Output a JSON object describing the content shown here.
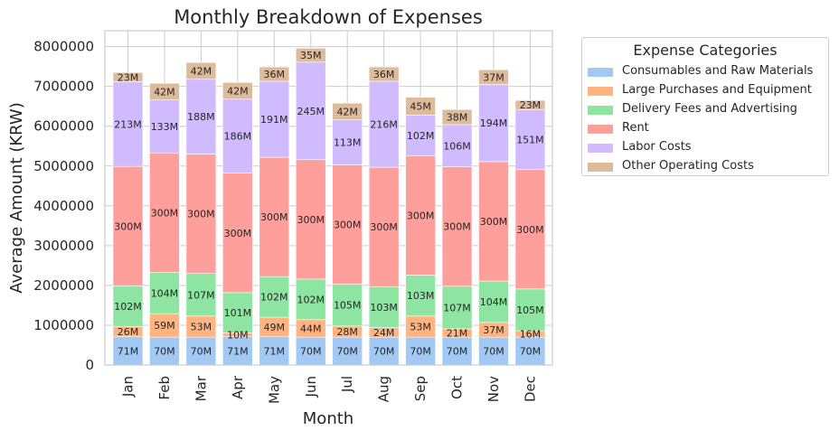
{
  "chart_data": {
    "type": "bar",
    "stacked": true,
    "title": "Monthly Breakdown of Expenses",
    "xlabel": "Month",
    "ylabel": "Average Amount (KRW)",
    "ylim": [
      0,
      8400000
    ],
    "yticks": [
      0,
      1000000,
      2000000,
      3000000,
      4000000,
      5000000,
      6000000,
      7000000,
      8000000
    ],
    "ytick_labels": [
      "0",
      "1000000",
      "2000000",
      "3000000",
      "4000000",
      "5000000",
      "6000000",
      "7000000",
      "8000000"
    ],
    "grid": true,
    "categories": [
      "Jan",
      "Feb",
      "Mar",
      "Apr",
      "May",
      "Jun",
      "Jul",
      "Aug",
      "Sep",
      "Oct",
      "Nov",
      "Dec"
    ],
    "legend": {
      "title": "Expense Categories",
      "placement": "outside-upper-right"
    },
    "series": [
      {
        "name": "Consumables and Raw Materials",
        "color": "#a1c9f4",
        "values": [
          710000,
          700000,
          700000,
          710000,
          710000,
          700000,
          700000,
          700000,
          700000,
          700000,
          700000,
          700000
        ],
        "labels": [
          "71M",
          "70M",
          "70M",
          "71M",
          "71M",
          "70M",
          "70M",
          "70M",
          "70M",
          "70M",
          "70M",
          "70M"
        ]
      },
      {
        "name": "Large Purchases and Equipment",
        "color": "#ffb482",
        "values": [
          260000,
          590000,
          530000,
          100000,
          490000,
          440000,
          280000,
          240000,
          530000,
          210000,
          370000,
          160000
        ],
        "labels": [
          "26M",
          "59M",
          "53M",
          "10M",
          "49M",
          "44M",
          "28M",
          "24M",
          "53M",
          "21M",
          "37M",
          "16M"
        ]
      },
      {
        "name": "Delivery Fees and Advertising",
        "color": "#8de5a1",
        "values": [
          1020000,
          1040000,
          1070000,
          1010000,
          1020000,
          1020000,
          1050000,
          1030000,
          1030000,
          1070000,
          1040000,
          1050000
        ],
        "labels": [
          "102M",
          "104M",
          "107M",
          "101M",
          "102M",
          "102M",
          "105M",
          "103M",
          "103M",
          "107M",
          "104M",
          "105M"
        ]
      },
      {
        "name": "Rent",
        "color": "#ff9f9b",
        "values": [
          3000000,
          3000000,
          3000000,
          3000000,
          3000000,
          3000000,
          3000000,
          3000000,
          3000000,
          3000000,
          3000000,
          3000000
        ],
        "labels": [
          "300M",
          "300M",
          "300M",
          "300M",
          "300M",
          "300M",
          "300M",
          "300M",
          "300M",
          "300M",
          "300M",
          "300M"
        ]
      },
      {
        "name": "Labor Costs",
        "color": "#d0bbff",
        "values": [
          2130000,
          1330000,
          1880000,
          1860000,
          1910000,
          2450000,
          1130000,
          2160000,
          1020000,
          1060000,
          1940000,
          1510000
        ],
        "labels": [
          "213M",
          "133M",
          "188M",
          "186M",
          "191M",
          "245M",
          "113M",
          "216M",
          "102M",
          "106M",
          "194M",
          "151M"
        ]
      },
      {
        "name": "Other Operating Costs",
        "color": "#debb9b",
        "values": [
          230000,
          420000,
          420000,
          420000,
          360000,
          350000,
          420000,
          360000,
          450000,
          380000,
          370000,
          230000
        ],
        "labels": [
          "23M",
          "42M",
          "42M",
          "42M",
          "36M",
          "35M",
          "42M",
          "36M",
          "45M",
          "38M",
          "37M",
          "23M"
        ]
      }
    ]
  }
}
